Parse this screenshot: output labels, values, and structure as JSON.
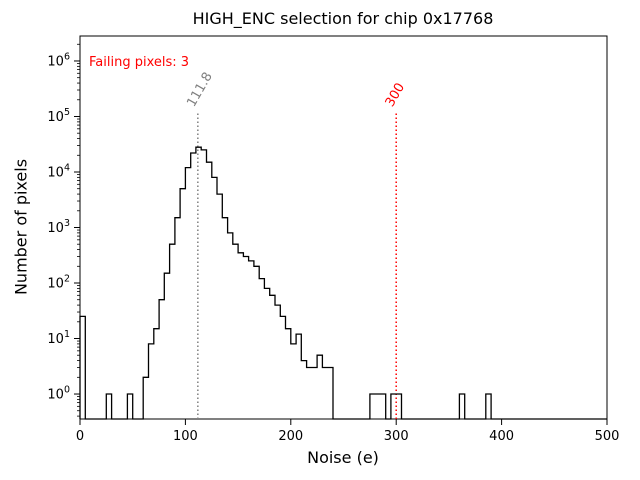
{
  "chart_data": {
    "type": "histogram",
    "title": "HIGH_ENC selection for chip 0x17768",
    "xlabel": "Noise (e)",
    "ylabel": "Number of pixels",
    "xlim": [
      0,
      500
    ],
    "x_ticks": [
      0,
      100,
      200,
      300,
      400,
      500
    ],
    "y_scale": "log",
    "y_tick_exponents": [
      0,
      1,
      2,
      3,
      4,
      5,
      6
    ],
    "ylim_exp": [
      -0.45,
      6.45
    ],
    "bin_start": 0,
    "bin_width": 5,
    "counts": [
      25,
      0,
      0,
      0,
      0,
      1,
      0,
      0,
      0,
      1,
      0,
      0,
      2,
      8,
      15,
      50,
      150,
      500,
      1500,
      5000,
      12000,
      22000,
      28000,
      25000,
      15000,
      8000,
      4000,
      1500,
      800,
      500,
      350,
      300,
      250,
      200,
      120,
      80,
      60,
      40,
      25,
      15,
      8,
      12,
      4,
      3,
      3,
      5,
      3,
      3,
      0,
      0,
      0,
      0,
      0,
      0,
      0,
      1,
      1,
      1,
      0,
      1,
      1,
      0,
      0,
      0,
      0,
      0,
      0,
      0,
      0,
      0,
      0,
      0,
      1,
      0,
      0,
      0,
      0,
      1,
      0,
      0,
      0,
      0,
      0,
      0,
      0,
      0,
      0,
      0,
      0,
      0,
      0,
      0,
      0,
      0,
      0,
      0,
      0,
      0,
      0,
      0
    ],
    "annotations": {
      "failing_text": {
        "label": "Failing pixels: 3",
        "color": "#ff0000"
      },
      "vlines": [
        {
          "x": 111.8,
          "label": "111.8",
          "color": "#808080"
        },
        {
          "x": 300,
          "label": "300",
          "color": "#ff0000"
        }
      ]
    },
    "colors": {
      "histogram": "#000000",
      "axes": "#000000",
      "background": "#ffffff"
    },
    "legend": null,
    "grid": false
  }
}
